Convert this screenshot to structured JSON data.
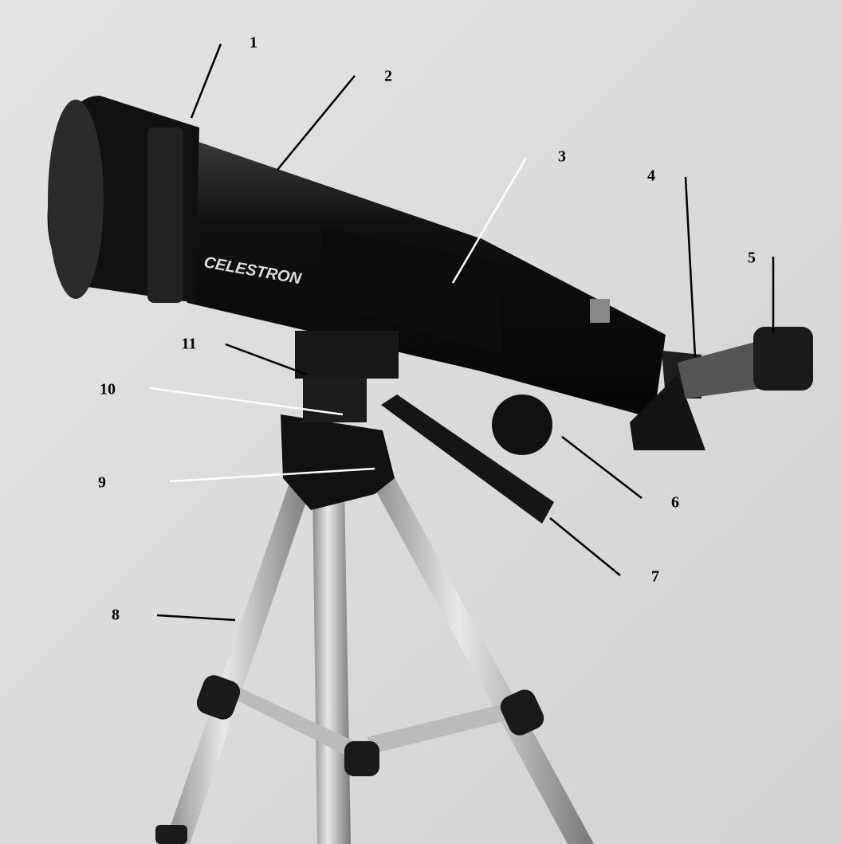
{
  "brand": "CELESTRON",
  "callouts": [
    {
      "label": "1"
    },
    {
      "label": "2"
    },
    {
      "label": "3"
    },
    {
      "label": "4"
    },
    {
      "label": "5"
    },
    {
      "label": "6"
    },
    {
      "label": "7"
    },
    {
      "label": "8"
    },
    {
      "label": "9"
    },
    {
      "label": "10"
    },
    {
      "label": "11"
    }
  ]
}
